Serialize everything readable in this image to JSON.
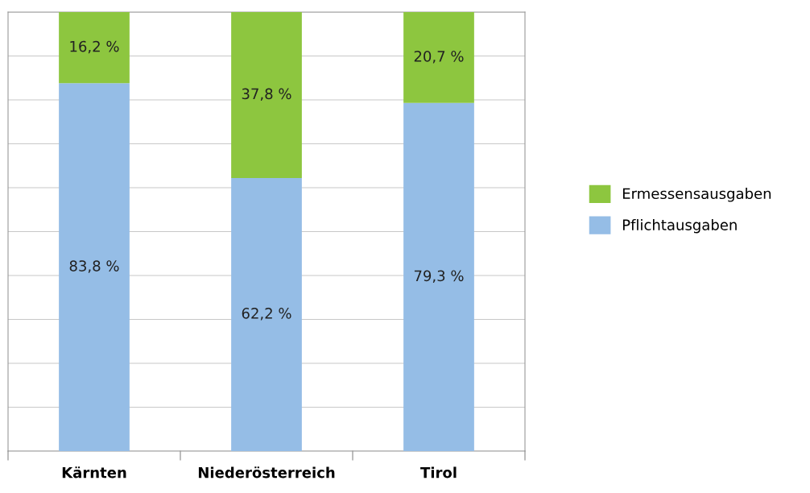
{
  "chart_data": {
    "type": "bar",
    "stacked": true,
    "categories": [
      "Kärnten",
      "Niederösterreich",
      "Tirol"
    ],
    "series": [
      {
        "name": "Pflichtausgaben",
        "color": "#95bde6",
        "values": [
          83.8,
          62.2,
          79.3
        ],
        "value_labels": [
          "83,8 %",
          "62,2 %",
          "79,3 %"
        ]
      },
      {
        "name": "Ermessensausgaben",
        "color": "#8dc63f",
        "values": [
          16.2,
          37.8,
          20.7
        ],
        "value_labels": [
          "16,2 %",
          "37,8 %",
          "20,7 %"
        ]
      }
    ],
    "ylim": [
      0,
      100
    ],
    "yticks": [
      {
        "value": 0,
        "label": null
      },
      {
        "value": 10,
        "label": null
      },
      {
        "value": 20,
        "label": null
      },
      {
        "value": 30,
        "label": null
      },
      {
        "value": 40,
        "label": null
      },
      {
        "value": 50,
        "label": null
      },
      {
        "value": 60,
        "label": null
      },
      {
        "value": 70,
        "label": null
      },
      {
        "value": 80,
        "label": null
      },
      {
        "value": 90,
        "label": null
      },
      {
        "value": 100,
        "label": null
      }
    ],
    "grid": "y",
    "legend": "right",
    "tick_labels": "x"
  }
}
